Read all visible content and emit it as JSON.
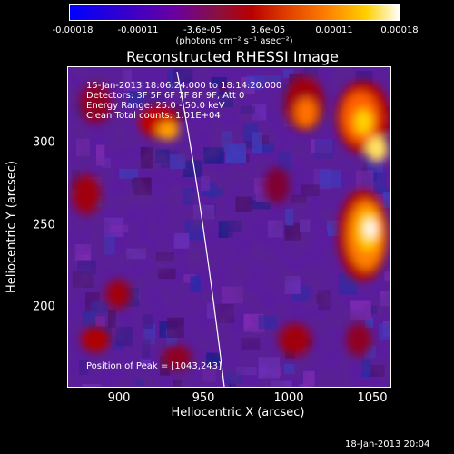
{
  "colorbar": {
    "ticks": [
      "-0.00018",
      "-0.00011",
      "-3.6e-05",
      "3.6e-05",
      "0.00011",
      "0.00018"
    ],
    "units": "(photons cm⁻² s⁻¹ asec⁻²)"
  },
  "title": "Reconstructed RHESSI Image",
  "annotations": {
    "time_range": "15-Jan-2013 18:06:24.000 to 18:14:20.000",
    "detectors": "Detectors: 3F 5F 6F 7F 8F 9F, Att 0",
    "energy": "Energy Range: 25.0 - 50.0 keV",
    "clean": "Clean     Total counts: 1.01E+04",
    "peak": "Position of Peak = [1043,243]"
  },
  "axes": {
    "xlabel": "Heliocentric X (arcsec)",
    "ylabel": "Heliocentric Y (arcsec)",
    "xticks": [
      "900",
      "950",
      "1000",
      "1050"
    ],
    "yticks": [
      "300",
      "250",
      "200"
    ]
  },
  "timestamp": "18-Jan-2013 20:04",
  "colors": {
    "background": "#000000",
    "text": "#ffffff",
    "limb": "#ffffff"
  }
}
